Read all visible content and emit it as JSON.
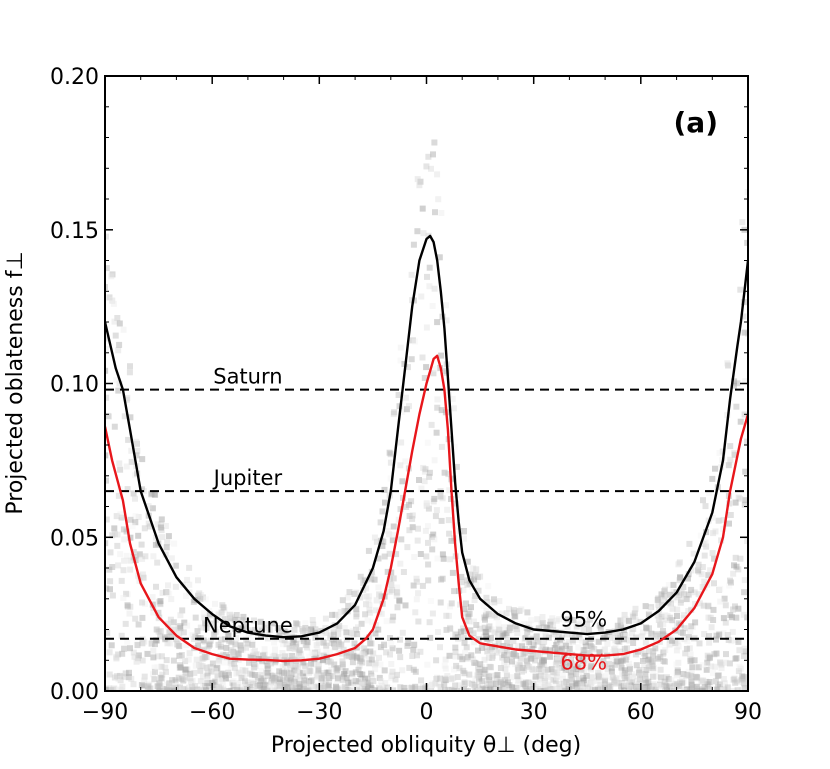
{
  "chart_data": {
    "type": "line",
    "panel_label": "(a)",
    "xlabel": "Projected obliquity θ⊥ (deg)",
    "ylabel": "Projected oblateness f⊥",
    "xlim": [
      -90,
      90
    ],
    "ylim": [
      0,
      0.2
    ],
    "xticks": [
      -90,
      -60,
      -30,
      0,
      30,
      60,
      90
    ],
    "xtick_labels": [
      "−90",
      "−60",
      "−30",
      "0",
      "30",
      "60",
      "90"
    ],
    "yticks": [
      0,
      0.05,
      0.1,
      0.15,
      0.2
    ],
    "ytick_labels": [
      "0.00",
      "0.05",
      "0.10",
      "0.15",
      "0.20"
    ],
    "grid": false,
    "colors": {
      "contour95": "#000000",
      "contour68": "#e8161b",
      "reference": "#000000"
    },
    "reference_lines": [
      {
        "name": "Saturn",
        "label": "Saturn",
        "y": 0.098,
        "label_x": -50
      },
      {
        "name": "Jupiter",
        "label": "Jupiter",
        "y": 0.065,
        "label_x": -50
      },
      {
        "name": "Neptune",
        "label": "Neptune",
        "y": 0.017,
        "label_x": -50
      }
    ],
    "series": [
      {
        "name": "95% contour",
        "label": "95%",
        "label_x": 44,
        "label_y": 0.021,
        "x": [
          -90,
          -87,
          -85,
          -83,
          -80,
          -75,
          -70,
          -65,
          -60,
          -55,
          -50,
          -45,
          -40,
          -35,
          -30,
          -25,
          -20,
          -15,
          -12,
          -10,
          -8,
          -6,
          -4,
          -2,
          0,
          1,
          2,
          3,
          4,
          5,
          6,
          7,
          8,
          9,
          10,
          12,
          15,
          20,
          25,
          30,
          35,
          40,
          45,
          50,
          55,
          60,
          65,
          70,
          75,
          80,
          83,
          85,
          87,
          88,
          90
        ],
        "y": [
          0.12,
          0.105,
          0.098,
          0.085,
          0.065,
          0.048,
          0.037,
          0.03,
          0.025,
          0.021,
          0.019,
          0.018,
          0.0175,
          0.0178,
          0.019,
          0.022,
          0.028,
          0.04,
          0.052,
          0.065,
          0.085,
          0.105,
          0.125,
          0.14,
          0.147,
          0.148,
          0.146,
          0.14,
          0.13,
          0.118,
          0.102,
          0.085,
          0.068,
          0.055,
          0.045,
          0.036,
          0.03,
          0.025,
          0.022,
          0.02,
          0.0195,
          0.019,
          0.0185,
          0.019,
          0.02,
          0.022,
          0.026,
          0.032,
          0.042,
          0.058,
          0.075,
          0.095,
          0.112,
          0.12,
          0.14
        ]
      },
      {
        "name": "68% contour",
        "label": "68%",
        "label_x": 44,
        "label_y": 0.007,
        "x": [
          -90,
          -88,
          -85,
          -83,
          -80,
          -75,
          -70,
          -65,
          -60,
          -55,
          -50,
          -45,
          -40,
          -35,
          -30,
          -25,
          -20,
          -17,
          -15,
          -12,
          -10,
          -8,
          -6,
          -4,
          -2,
          0,
          1,
          2,
          3,
          4,
          5,
          6,
          7,
          8,
          9,
          10,
          12,
          15,
          20,
          25,
          30,
          35,
          40,
          45,
          50,
          55,
          60,
          65,
          70,
          75,
          80,
          83,
          85,
          88,
          90
        ],
        "y": [
          0.086,
          0.075,
          0.062,
          0.048,
          0.035,
          0.024,
          0.018,
          0.014,
          0.012,
          0.0105,
          0.0102,
          0.0101,
          0.0098,
          0.01,
          0.0105,
          0.012,
          0.014,
          0.017,
          0.02,
          0.03,
          0.04,
          0.052,
          0.065,
          0.078,
          0.09,
          0.1,
          0.104,
          0.108,
          0.109,
          0.105,
          0.098,
          0.085,
          0.065,
          0.048,
          0.035,
          0.024,
          0.018,
          0.0155,
          0.0145,
          0.0135,
          0.013,
          0.0125,
          0.012,
          0.0115,
          0.0115,
          0.012,
          0.0135,
          0.016,
          0.02,
          0.027,
          0.038,
          0.05,
          0.065,
          0.082,
          0.09
        ]
      }
    ]
  }
}
